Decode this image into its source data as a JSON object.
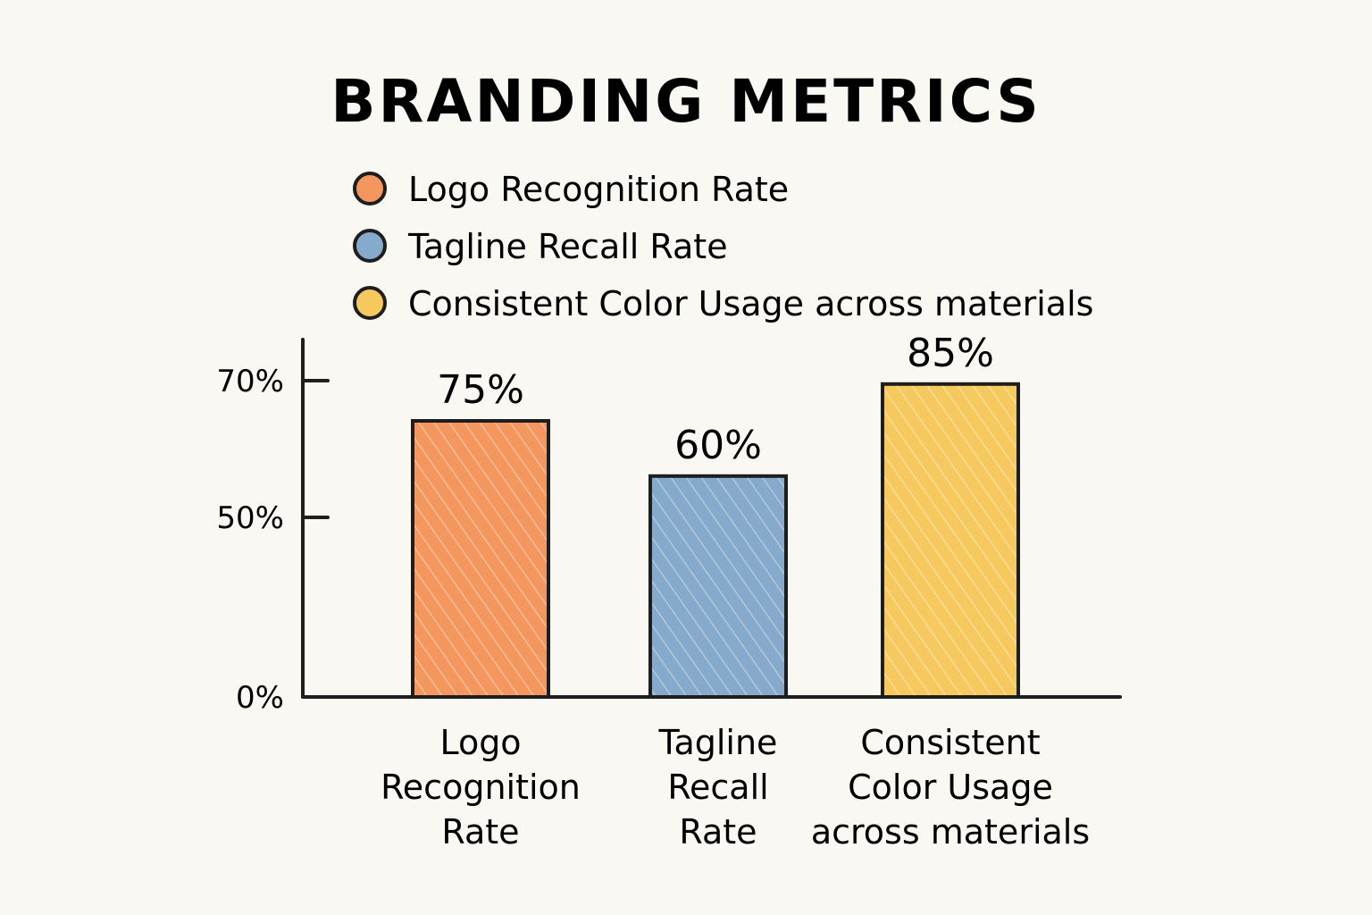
{
  "chart_data": {
    "type": "bar",
    "title": "BRANDING METRICS",
    "xlabel": "",
    "ylabel": "",
    "categories": [
      [
        "Logo",
        "Recognition",
        "Rate"
      ],
      [
        "Tagline",
        "Recall",
        "Rate"
      ],
      [
        "Consistent",
        "Color Usage",
        "across materials"
      ]
    ],
    "values": [
      75,
      60,
      85
    ],
    "value_labels": [
      "75%",
      "60%",
      "85%"
    ],
    "colors": [
      "#f4975f",
      "#86aacb",
      "#f6c95f"
    ],
    "legend": {
      "placement": "top",
      "entries": [
        {
          "label": "Logo Recognition Rate",
          "color": "#f4975f"
        },
        {
          "label": "Tagline Recall Rate",
          "color": "#86aacb"
        },
        {
          "label": "Consistent Color Usage across materials",
          "color": "#f6c95f"
        }
      ]
    },
    "y_ticks": [
      {
        "value": 0,
        "label": "0%"
      },
      {
        "value": 50,
        "label": "50%"
      },
      {
        "value": 70,
        "label": "70%"
      }
    ],
    "grid": false
  }
}
